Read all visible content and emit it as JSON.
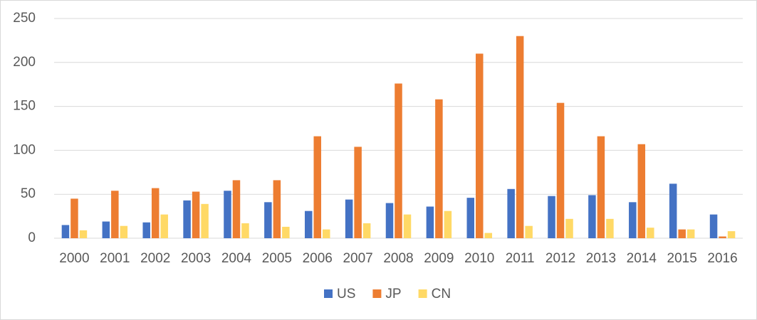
{
  "chart_data": {
    "type": "bar",
    "categories": [
      "2000",
      "2001",
      "2002",
      "2003",
      "2004",
      "2005",
      "2006",
      "2007",
      "2008",
      "2009",
      "2010",
      "2011",
      "2012",
      "2013",
      "2014",
      "2015",
      "2016"
    ],
    "series": [
      {
        "name": "US",
        "color": "#4472c4",
        "values": [
          15,
          19,
          18,
          43,
          54,
          41,
          31,
          44,
          40,
          36,
          46,
          56,
          48,
          49,
          41,
          62,
          27
        ]
      },
      {
        "name": "JP",
        "color": "#ed7d31",
        "values": [
          45,
          54,
          57,
          53,
          66,
          66,
          116,
          104,
          176,
          158,
          210,
          230,
          154,
          116,
          107,
          10,
          2
        ]
      },
      {
        "name": "CN",
        "color": "#ffd966",
        "values": [
          9,
          14,
          27,
          39,
          17,
          13,
          10,
          17,
          27,
          31,
          6,
          14,
          22,
          22,
          12,
          10,
          8
        ]
      }
    ],
    "ylim": [
      0,
      250
    ],
    "yticks": [
      0,
      50,
      100,
      150,
      200,
      250
    ],
    "grid": true,
    "legend": "bottom"
  }
}
